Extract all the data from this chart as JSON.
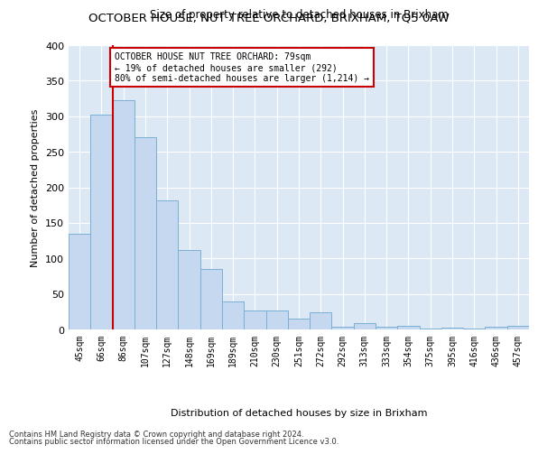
{
  "title": "OCTOBER HOUSE, NUT TREE ORCHARD, BRIXHAM, TQ5 0AW",
  "subtitle": "Size of property relative to detached houses in Brixham",
  "xlabel": "Distribution of detached houses by size in Brixham",
  "ylabel": "Number of detached properties",
  "categories": [
    "45sqm",
    "66sqm",
    "86sqm",
    "107sqm",
    "127sqm",
    "148sqm",
    "169sqm",
    "189sqm",
    "210sqm",
    "230sqm",
    "251sqm",
    "272sqm",
    "292sqm",
    "313sqm",
    "333sqm",
    "354sqm",
    "375sqm",
    "395sqm",
    "416sqm",
    "436sqm",
    "457sqm"
  ],
  "values": [
    135,
    302,
    323,
    270,
    182,
    112,
    85,
    39,
    27,
    27,
    15,
    24,
    4,
    9,
    4,
    5,
    1,
    3,
    1,
    4,
    5
  ],
  "bar_color": "#c5d8f0",
  "bar_edge_color": "#7aafd4",
  "property_line_x": 1.5,
  "annotation_text": "OCTOBER HOUSE NUT TREE ORCHARD: 79sqm\n← 19% of detached houses are smaller (292)\n80% of semi-detached houses are larger (1,214) →",
  "annotation_box_color": "#ffffff",
  "annotation_box_edge_color": "#cc0000",
  "red_line_color": "#cc0000",
  "ylim": [
    0,
    400
  ],
  "yticks": [
    0,
    50,
    100,
    150,
    200,
    250,
    300,
    350,
    400
  ],
  "background_color": "#dce9f5",
  "grid_color": "#ffffff",
  "footer_line1": "Contains HM Land Registry data © Crown copyright and database right 2024.",
  "footer_line2": "Contains public sector information licensed under the Open Government Licence v3.0."
}
